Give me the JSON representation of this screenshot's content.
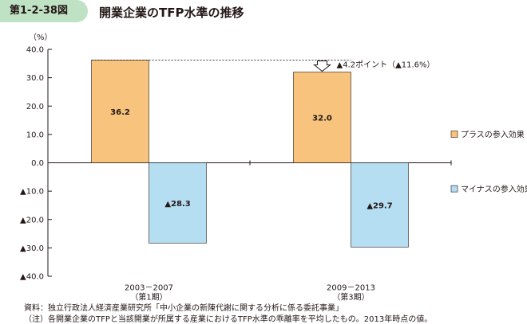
{
  "figure": {
    "label": "第1-2-38図",
    "title": "開業企業のTFP水準の推移"
  },
  "chart_data": {
    "type": "bar",
    "stacked": true,
    "unit_label": "（%）",
    "ylim": [
      -40,
      40
    ],
    "yticks": [
      "40.0",
      "30.0",
      "20.0",
      "10.0",
      "0.0",
      "▲10.0",
      "▲20.0",
      "▲30.0",
      "▲40.0"
    ],
    "categories": [
      {
        "line1": "2003－2007",
        "line2": "（第1期）"
      },
      {
        "line1": "2009－2013",
        "line2": "（第3期）"
      }
    ],
    "series": [
      {
        "name": "プラスの参入効果",
        "color": "#f7c37d",
        "values": [
          36.2,
          32.0
        ],
        "labels": [
          "36.2",
          "32.0"
        ]
      },
      {
        "name": "マイナスの参入効果",
        "color": "#b5def3",
        "values": [
          -28.3,
          -29.7
        ],
        "labels": [
          "▲28.3",
          "▲29.7"
        ]
      }
    ],
    "annotation": {
      "text": "▲4.2ポイント（▲11.6%）",
      "reference_value": 36.2
    },
    "legend_position": "right",
    "grid": false
  },
  "notes": [
    "資料：独立行政法人経済産業研究所「中小企業の新陳代謝に関する分析に係る委託事業」",
    "（注）各開業企業のTFPと当該開業が所属する産業におけるTFP水準の乖離率を平均したもの。2013年時点の値。"
  ]
}
